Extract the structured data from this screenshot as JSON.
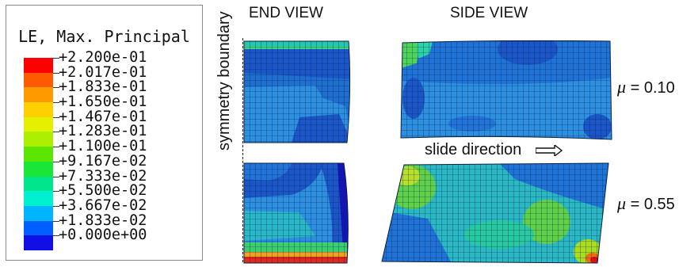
{
  "legend": {
    "title": "LE, Max. Principal",
    "colors": [
      "#ff0000",
      "#ff5a00",
      "#ff9900",
      "#ffcf00",
      "#e5f000",
      "#aaf000",
      "#5ae600",
      "#19e636",
      "#00e68c",
      "#00f0d0",
      "#00b4ff",
      "#0060ff",
      "#1010e6"
    ],
    "ticks": [
      "+2.200e-01",
      "+2.017e-01",
      "+1.833e-01",
      "+1.650e-01",
      "+1.467e-01",
      "+1.283e-01",
      "+1.100e-01",
      "+9.167e-02",
      "+7.333e-02",
      "+5.500e-02",
      "+3.667e-02",
      "+1.833e-02",
      "+0.000e+00"
    ]
  },
  "figure": {
    "end_view_title": "END VIEW",
    "side_view_title": "SIDE VIEW",
    "symmetry_label": "symmetry boundary",
    "slide_label": "slide direction",
    "mu_top": {
      "symbol": "μ",
      "value": " = 0.10"
    },
    "mu_bottom": {
      "symbol": "μ",
      "value": " = 0.55"
    }
  }
}
